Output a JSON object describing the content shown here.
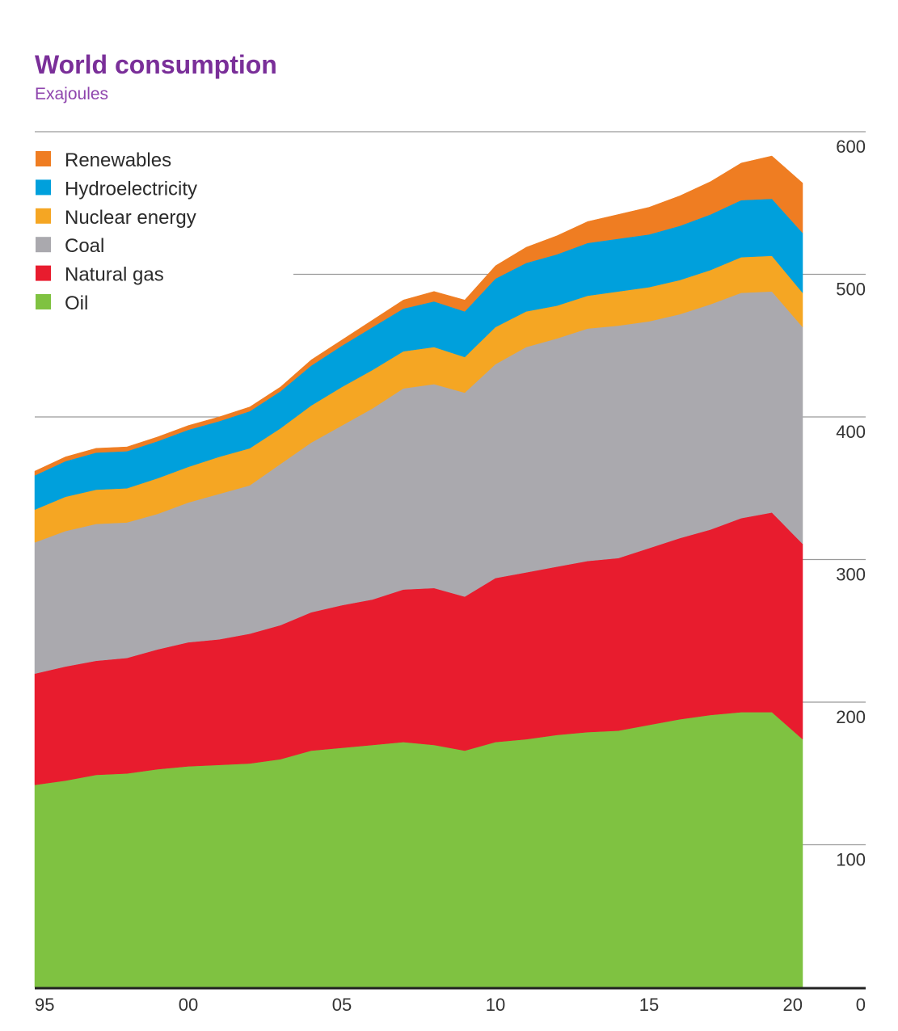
{
  "chart_data": {
    "type": "area",
    "stacked": true,
    "title": "World consumption",
    "subtitle": "Exajoules",
    "xlabel": "",
    "ylabel": "",
    "xlim": [
      1995,
      2020
    ],
    "ylim": [
      0,
      600
    ],
    "x_ticks": [
      1995,
      2000,
      2005,
      2010,
      2015,
      2020
    ],
    "x_tick_labels": [
      "95",
      "00",
      "05",
      "10",
      "15",
      "20"
    ],
    "y_ticks": [
      0,
      100,
      200,
      300,
      400,
      500,
      600
    ],
    "y_tick_labels": [
      "0",
      "100",
      "200",
      "300",
      "400",
      "500",
      "600"
    ],
    "y_axis_side": "right",
    "grid": "horizontal",
    "legend_position": "top-left",
    "x": [
      1995,
      1996,
      1997,
      1998,
      1999,
      2000,
      2001,
      2002,
      2003,
      2004,
      2005,
      2006,
      2007,
      2008,
      2009,
      2010,
      2011,
      2012,
      2013,
      2014,
      2015,
      2016,
      2017,
      2018,
      2019,
      2020
    ],
    "series": [
      {
        "name": "Oil",
        "color": "#7fc241",
        "values": [
          142,
          145,
          149,
          150,
          153,
          155,
          156,
          157,
          160,
          166,
          168,
          170,
          172,
          170,
          166,
          172,
          174,
          177,
          179,
          180,
          184,
          188,
          191,
          193,
          193,
          174
        ]
      },
      {
        "name": "Natural gas",
        "color": "#e81c2e",
        "values": [
          78,
          80,
          80,
          81,
          84,
          87,
          88,
          91,
          94,
          97,
          100,
          102,
          107,
          110,
          108,
          115,
          117,
          118,
          120,
          121,
          124,
          127,
          130,
          136,
          140,
          137
        ]
      },
      {
        "name": "Coal",
        "color": "#aaa9ae",
        "values": [
          92,
          95,
          96,
          95,
          95,
          98,
          102,
          104,
          113,
          119,
          126,
          134,
          141,
          143,
          143,
          150,
          158,
          160,
          163,
          163,
          159,
          157,
          158,
          158,
          155,
          152
        ]
      },
      {
        "name": "Nuclear energy",
        "color": "#f5a623",
        "values": [
          23,
          24,
          24,
          24,
          25,
          25,
          26,
          26,
          25,
          26,
          27,
          27,
          26,
          26,
          25,
          26,
          25,
          23,
          23,
          24,
          24,
          24,
          24,
          25,
          25,
          24
        ]
      },
      {
        "name": "Hydroelectricity",
        "color": "#00a0dc",
        "values": [
          24,
          25,
          26,
          26,
          26,
          26,
          25,
          26,
          26,
          28,
          29,
          30,
          30,
          32,
          32,
          34,
          34,
          36,
          37,
          37,
          37,
          38,
          39,
          40,
          40,
          42
        ]
      },
      {
        "name": "Renewables",
        "color": "#ef7d22",
        "values": [
          3,
          3,
          3,
          3,
          3,
          3,
          3,
          3,
          3,
          4,
          4,
          5,
          6,
          7,
          8,
          9,
          11,
          13,
          15,
          17,
          19,
          21,
          23,
          26,
          30,
          35
        ]
      }
    ]
  },
  "legend": {
    "items": [
      {
        "label": "Renewables",
        "color": "#ef7d22"
      },
      {
        "label": "Hydroelectricity",
        "color": "#00a0dc"
      },
      {
        "label": "Nuclear energy",
        "color": "#f5a623"
      },
      {
        "label": "Coal",
        "color": "#aaa9ae"
      },
      {
        "label": "Natural gas",
        "color": "#e81c2e"
      },
      {
        "label": "Oil",
        "color": "#7fc241"
      }
    ]
  }
}
